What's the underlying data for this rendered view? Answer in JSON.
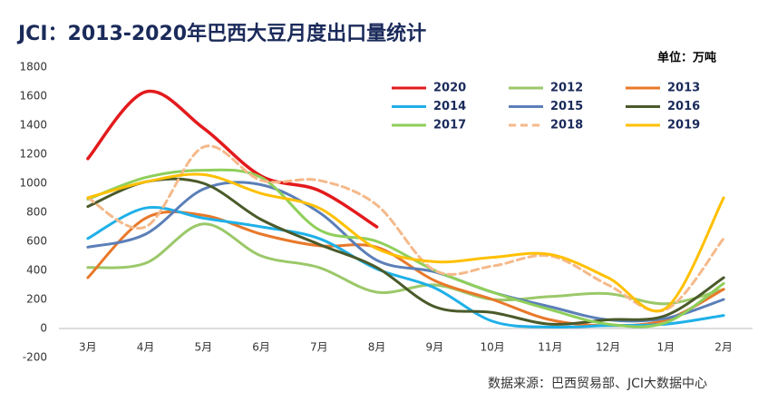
{
  "chart_data": {
    "type": "line",
    "title": "JCI：2013-2020年巴西大豆月度出口量统计",
    "unit_label": "单位：万吨",
    "source": "数据来源：巴西贸易部、JCI大数据中心",
    "categories": [
      "3月",
      "4月",
      "5月",
      "6月",
      "7月",
      "8月",
      "9月",
      "10月",
      "11月",
      "12月",
      "1月",
      "2月"
    ],
    "ylim": [
      -200,
      1800
    ],
    "yticks": [
      -200,
      0,
      200,
      400,
      600,
      800,
      1000,
      1200,
      1400,
      1600,
      1800
    ],
    "series": [
      {
        "name": "2020",
        "color": "#e31a1c",
        "values": [
          1170,
          1630,
          1380,
          1050,
          950,
          700,
          null,
          null,
          null,
          null,
          null,
          null
        ]
      },
      {
        "name": "2012",
        "color": "#9bc869",
        "values": [
          420,
          450,
          720,
          500,
          420,
          250,
          300,
          200,
          220,
          240,
          170,
          270
        ]
      },
      {
        "name": "2013",
        "color": "#e8782a",
        "values": [
          350,
          760,
          780,
          650,
          570,
          560,
          330,
          200,
          60,
          20,
          60,
          270
        ]
      },
      {
        "name": "2014",
        "color": "#1fb0e8",
        "values": [
          620,
          830,
          760,
          700,
          620,
          410,
          280,
          50,
          10,
          20,
          30,
          90
        ]
      },
      {
        "name": "2015",
        "color": "#5b7fb8",
        "values": [
          560,
          650,
          960,
          990,
          800,
          470,
          390,
          250,
          150,
          60,
          70,
          200
        ]
      },
      {
        "name": "2016",
        "color": "#4a5a2a",
        "values": [
          840,
          1010,
          1000,
          750,
          580,
          420,
          150,
          110,
          30,
          60,
          90,
          350
        ]
      },
      {
        "name": "2017",
        "color": "#8fcf5a",
        "values": [
          890,
          1040,
          1090,
          1040,
          680,
          600,
          400,
          250,
          130,
          30,
          40,
          310
        ]
      },
      {
        "name": "2018",
        "color": "#f5b98a",
        "dashed": true,
        "values": [
          900,
          700,
          1250,
          1020,
          1020,
          850,
          400,
          430,
          500,
          300,
          130,
          620
        ]
      },
      {
        "name": "2019",
        "color": "#ffc000",
        "values": [
          900,
          1010,
          1060,
          930,
          830,
          550,
          460,
          490,
          510,
          350,
          140,
          900
        ]
      }
    ]
  }
}
